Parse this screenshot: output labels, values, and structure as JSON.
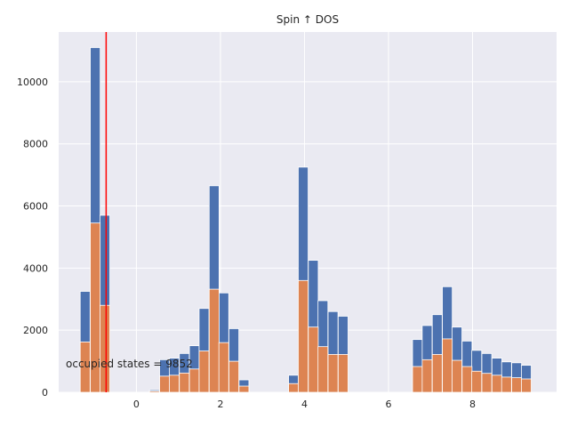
{
  "chart_data": {
    "type": "bar",
    "title": "Spin  ↑  DOS",
    "xlabel": "",
    "ylabel": "",
    "xlim": [
      -1.85,
      10.0
    ],
    "ylim": [
      0,
      11600
    ],
    "xticks": [
      0,
      2,
      4,
      6,
      8
    ],
    "xtick_labels": [
      "0",
      "2",
      "4",
      "6",
      "8"
    ],
    "yticks": [
      0,
      2000,
      4000,
      6000,
      8000,
      10000
    ],
    "ytick_labels": [
      "0",
      "2000",
      "4000",
      "6000",
      "8000",
      "10000"
    ],
    "grid": true,
    "bin_width": 0.235,
    "x": [
      -1.22,
      -0.98,
      -0.75,
      0.43,
      0.67,
      0.9,
      1.14,
      1.38,
      1.61,
      1.85,
      2.08,
      2.32,
      2.56,
      3.74,
      3.97,
      4.21,
      4.44,
      4.68,
      4.92,
      6.69,
      6.92,
      7.16,
      7.4,
      7.63,
      7.87,
      8.1,
      8.34,
      8.58,
      8.81,
      9.05,
      9.28
    ],
    "series": [
      {
        "values": [
          3250,
          11100,
          5700,
          80,
          1050,
          1100,
          1250,
          1500,
          2700,
          6650,
          3200,
          2050,
          400,
          550,
          7250,
          4250,
          2950,
          2600,
          2450,
          1700,
          2150,
          2500,
          3400,
          2100,
          1650,
          1350,
          1250,
          1100,
          980,
          950,
          870
        ]
      },
      {
        "values": [
          1620,
          5450,
          2800,
          40,
          520,
          550,
          620,
          750,
          1330,
          3320,
          1600,
          1000,
          200,
          280,
          3600,
          2100,
          1470,
          1220,
          1220,
          830,
          1050,
          1220,
          1720,
          1030,
          830,
          680,
          610,
          550,
          490,
          470,
          430
        ]
      }
    ],
    "series_colors": [
      "#4c72b0",
      "#dd8452"
    ],
    "vline_x": -0.72,
    "vline_color": "#ff0000",
    "annotation": "occupied states = 9852"
  }
}
